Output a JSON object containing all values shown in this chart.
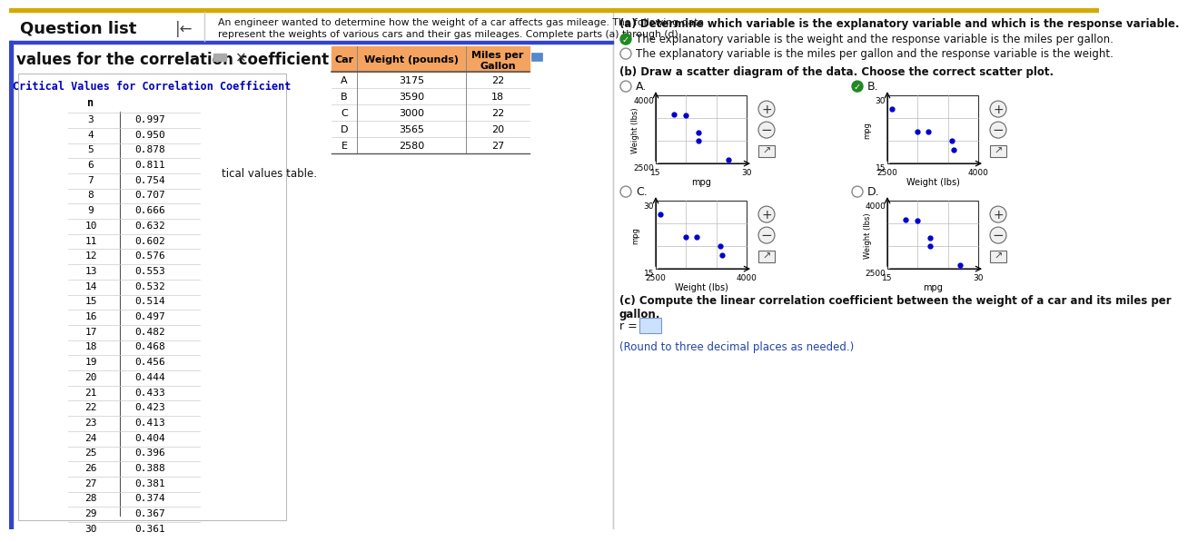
{
  "title_text": "An engineer wanted to determine how the weight of a car affects gas mileage. The following data\nrepresent the weights of various cars and their gas mileages. Complete parts (a) through (d).",
  "question_list_text": "Question list",
  "arrow_text": "|<-",
  "panel_title": "values for the correlation coefficient",
  "critical_values_title": "Critical Values for Correlation Coefficient",
  "critical_n": [
    3,
    4,
    5,
    6,
    7,
    8,
    9,
    10,
    11,
    12,
    13,
    14,
    15,
    16,
    17,
    18,
    19,
    20,
    21,
    22,
    23,
    24,
    25,
    26,
    27,
    28,
    29,
    30
  ],
  "critical_r": [
    0.997,
    0.95,
    0.878,
    0.811,
    0.754,
    0.707,
    0.666,
    0.632,
    0.602,
    0.576,
    0.553,
    0.532,
    0.514,
    0.497,
    0.482,
    0.468,
    0.456,
    0.444,
    0.433,
    0.423,
    0.413,
    0.404,
    0.396,
    0.388,
    0.381,
    0.374,
    0.367,
    0.361
  ],
  "table_cars": [
    "A",
    "B",
    "C",
    "D",
    "E"
  ],
  "table_weights": [
    3175,
    3590,
    3000,
    3565,
    2580
  ],
  "table_mpg": [
    22,
    18,
    22,
    20,
    27
  ],
  "part_a_title": "(a) Determine which variable is the explanatory variable and which is the response variable.",
  "radio1_text": "The explanatory variable is the weight and the response variable is the miles per gallon.",
  "radio2_text": "The explanatory variable is the miles per gallon and the response variable is the weight.",
  "part_b_title": "(b) Draw a scatter diagram of the data. Choose the correct scatter plot.",
  "correct_option": "B",
  "part_c_title": "(c) Compute the linear correlation coefficient between the weight of a car and its miles per gallon.",
  "r_label": "r =",
  "round_note": "(Round to three decimal places as needed.)",
  "bg_color": "#ffffff",
  "table_header_bg": "#f4a460",
  "critical_title_color": "#0000bb",
  "header_bar_color": "#d4aa00",
  "sep_bar_color": "#3344cc",
  "scatter_dot_color": "#0000cc",
  "radio_check_color": "#228822",
  "answer_box_color": "#cce0ff",
  "scatter_plots": [
    {
      "label": "A.",
      "x_data": [
        22,
        18,
        22,
        20,
        27
      ],
      "y_data": [
        3175,
        3590,
        3000,
        3565,
        2580
      ],
      "x_min": 15,
      "x_max": 30,
      "y_min": 2500,
      "y_max": 4000,
      "xlabel": "mpg",
      "ylabel": "Weight (lbs)"
    },
    {
      "label": "B.",
      "x_data": [
        3175,
        3590,
        3000,
        3565,
        2580
      ],
      "y_data": [
        22,
        18,
        22,
        20,
        27
      ],
      "x_min": 2500,
      "x_max": 4000,
      "y_min": 15,
      "y_max": 30,
      "xlabel": "Weight (lbs)",
      "ylabel": "mpg"
    },
    {
      "label": "C.",
      "x_data": [
        3175,
        3590,
        3000,
        3565,
        2580
      ],
      "y_data": [
        22,
        18,
        22,
        20,
        27
      ],
      "x_min": 2500,
      "x_max": 4000,
      "y_min": 15,
      "y_max": 30,
      "xlabel": "Weight (lbs)",
      "ylabel": "mpg"
    },
    {
      "label": "D.",
      "x_data": [
        22,
        18,
        22,
        20,
        27
      ],
      "y_data": [
        3175,
        3590,
        3000,
        3565,
        2580
      ],
      "x_min": 15,
      "x_max": 30,
      "y_min": 2500,
      "y_max": 4000,
      "xlabel": "mpg",
      "ylabel": "Weight (lbs)"
    }
  ]
}
